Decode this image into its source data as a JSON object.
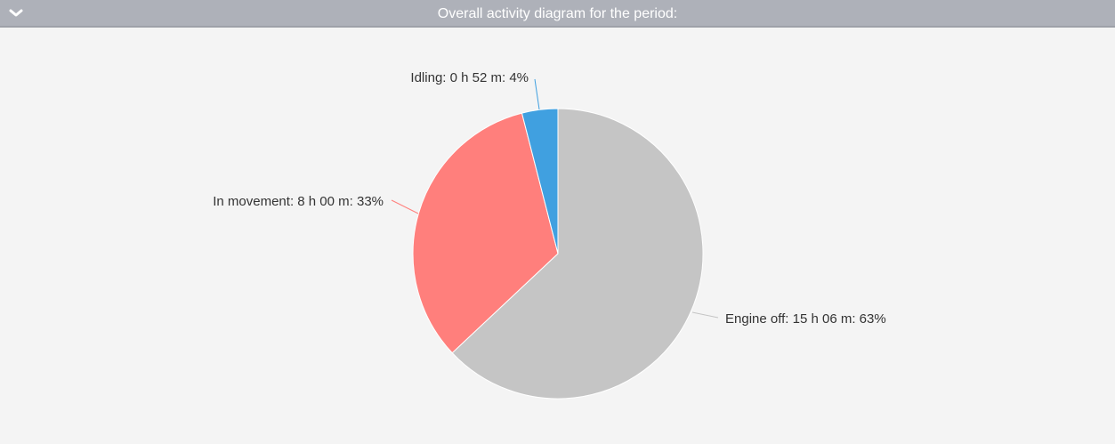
{
  "header": {
    "title": "Overall activity diagram for the period:",
    "toggle_icon": "chevron-down-icon"
  },
  "chart_data": {
    "type": "pie",
    "title": "",
    "slices": [
      {
        "label": "Engine off: 15 h 06 m: 63%",
        "value": 63,
        "color": "#c5c5c5"
      },
      {
        "label": "In movement: 8 h 00 m: 33%",
        "value": 33,
        "color": "#ff7f7c"
      },
      {
        "label": "Idling: 0 h 52 m: 4%",
        "value": 4,
        "color": "#40a0e0"
      }
    ]
  }
}
